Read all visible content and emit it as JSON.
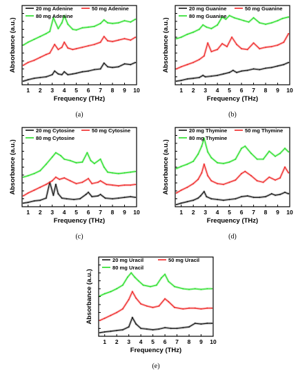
{
  "colors": {
    "low": "#111111",
    "mid": "#ee2222",
    "high": "#22dd22"
  },
  "chart_data": [
    {
      "type": "line",
      "panel_label": "(a)",
      "xlabel": "Frequency (THz)",
      "ylabel": "Absorbance (a.u.)",
      "xlim": [
        0.5,
        10
      ],
      "x_ticks": [
        "1",
        "2",
        "3",
        "4",
        "5",
        "6",
        "7",
        "8",
        "9",
        "10"
      ],
      "ylim": [
        0,
        11
      ],
      "series": [
        {
          "name": "20 mg Adenine",
          "color_key": "low",
          "x": [
            0.6,
            1.0,
            1.5,
            2.0,
            2.5,
            3.0,
            3.2,
            3.5,
            3.8,
            4.0,
            4.3,
            4.7,
            5.0,
            5.5,
            6.0,
            6.5,
            7.0,
            7.3,
            7.6,
            8.0,
            8.5,
            9.0,
            9.5,
            9.9
          ],
          "y": [
            0.5,
            0.7,
            0.9,
            1.0,
            1.1,
            1.4,
            1.9,
            1.5,
            1.4,
            1.8,
            1.4,
            1.5,
            1.6,
            1.8,
            1.9,
            2.1,
            2.2,
            3.0,
            2.5,
            2.4,
            2.5,
            2.9,
            2.8,
            3.1
          ]
        },
        {
          "name": "50 mg Adenine",
          "color_key": "mid",
          "x": [
            0.6,
            1.0,
            1.5,
            2.0,
            2.5,
            2.8,
            3.2,
            3.5,
            3.8,
            4.0,
            4.3,
            4.7,
            5.0,
            5.5,
            6.0,
            6.5,
            7.0,
            7.3,
            7.6,
            8.0,
            8.5,
            9.0,
            9.5,
            9.9
          ],
          "y": [
            2.7,
            3.1,
            3.4,
            3.8,
            4.2,
            4.4,
            5.6,
            4.9,
            5.2,
            5.9,
            5.1,
            4.9,
            5.0,
            5.2,
            5.4,
            5.6,
            5.9,
            6.7,
            6.1,
            6.0,
            6.2,
            6.4,
            6.2,
            6.6
          ]
        },
        {
          "name": "80 mg Adenine",
          "color_key": "high",
          "x": [
            0.6,
            1.0,
            1.5,
            2.0,
            2.5,
            2.8,
            3.1,
            3.5,
            3.8,
            4.0,
            4.3,
            4.7,
            5.0,
            5.5,
            6.0,
            6.5,
            7.0,
            7.3,
            7.6,
            8.0,
            8.5,
            9.0,
            9.5,
            9.9
          ],
          "y": [
            5.5,
            5.9,
            6.3,
            6.7,
            7.1,
            7.4,
            9.3,
            7.8,
            8.6,
            9.6,
            8.4,
            7.7,
            7.6,
            7.9,
            8.0,
            8.1,
            8.5,
            9.0,
            8.6,
            8.5,
            8.6,
            8.9,
            8.7,
            9.1
          ]
        }
      ]
    },
    {
      "type": "line",
      "panel_label": "(b)",
      "xlabel": "Frequency (THz)",
      "ylabel": "Absorbance (a.u.)",
      "xlim": [
        0.5,
        10
      ],
      "x_ticks": [
        "1",
        "2",
        "3",
        "4",
        "5",
        "6",
        "7",
        "8",
        "9",
        "10"
      ],
      "ylim": [
        0,
        11
      ],
      "series": [
        {
          "name": "20 mg Guanine",
          "color_key": "low",
          "x": [
            0.6,
            1.0,
            1.5,
            2.0,
            2.5,
            2.8,
            3.0,
            3.5,
            4.0,
            4.5,
            5.0,
            5.3,
            5.6,
            6.0,
            6.5,
            7.0,
            7.5,
            8.0,
            8.5,
            9.0,
            9.5,
            9.9
          ],
          "y": [
            0.5,
            0.6,
            0.8,
            0.9,
            1.0,
            1.3,
            1.1,
            1.2,
            1.3,
            1.5,
            1.7,
            2.0,
            1.7,
            1.9,
            2.0,
            2.2,
            2.1,
            2.3,
            2.4,
            2.6,
            2.8,
            3.1
          ]
        },
        {
          "name": "50 mg Guanine",
          "color_key": "mid",
          "x": [
            0.6,
            1.0,
            1.5,
            2.0,
            2.5,
            2.9,
            3.2,
            3.5,
            4.0,
            4.4,
            4.8,
            5.2,
            5.6,
            6.0,
            6.5,
            7.0,
            7.5,
            8.0,
            8.5,
            9.0,
            9.5,
            9.9
          ],
          "y": [
            2.2,
            2.5,
            2.8,
            3.1,
            3.5,
            4.0,
            5.8,
            4.6,
            4.9,
            5.7,
            5.3,
            6.6,
            5.6,
            5.0,
            4.9,
            5.8,
            5.0,
            5.2,
            5.3,
            5.5,
            5.9,
            7.1
          ]
        },
        {
          "name": "80 mg Guanine",
          "color_key": "high",
          "x": [
            0.6,
            1.0,
            1.5,
            2.0,
            2.5,
            2.8,
            3.1,
            3.5,
            4.0,
            4.4,
            4.7,
            5.0,
            5.4,
            5.8,
            6.2,
            6.6,
            7.0,
            7.5,
            8.0,
            8.5,
            9.0,
            9.4,
            9.9
          ],
          "y": [
            6.4,
            6.6,
            7.0,
            7.3,
            7.7,
            8.3,
            8.0,
            7.8,
            8.3,
            9.4,
            9.1,
            9.6,
            9.3,
            9.1,
            8.9,
            8.7,
            9.3,
            8.6,
            8.4,
            8.6,
            8.9,
            9.2,
            9.4
          ]
        }
      ]
    },
    {
      "type": "line",
      "panel_label": "(c)",
      "xlabel": "Frequency (THz)",
      "ylabel": "Absorbance (a.u.)",
      "xlim": [
        0.5,
        10
      ],
      "x_ticks": [
        "1",
        "2",
        "3",
        "4",
        "5",
        "6",
        "7",
        "8",
        "9",
        "10"
      ],
      "ylim": [
        0,
        11
      ],
      "series": [
        {
          "name": "20 mg Cytosine",
          "color_key": "low",
          "x": [
            0.6,
            1.0,
            1.5,
            2.0,
            2.5,
            2.8,
            3.1,
            3.3,
            3.5,
            3.8,
            4.2,
            4.8,
            5.3,
            5.8,
            6.0,
            6.3,
            6.8,
            7.0,
            7.4,
            8.0,
            8.5,
            9.0,
            9.5,
            9.9
          ],
          "y": [
            0.5,
            0.6,
            0.8,
            0.9,
            1.2,
            3.4,
            1.6,
            3.1,
            1.8,
            1.2,
            1.1,
            1.0,
            1.1,
            1.7,
            2.0,
            1.4,
            1.5,
            1.7,
            1.2,
            1.1,
            1.2,
            1.3,
            1.4,
            1.3
          ]
        },
        {
          "name": "50 mg Cytosine",
          "color_key": "mid",
          "x": [
            0.6,
            1.0,
            1.5,
            2.0,
            2.5,
            3.0,
            3.3,
            3.6,
            4.0,
            4.5,
            5.0,
            5.5,
            6.0,
            6.3,
            6.8,
            7.0,
            7.5,
            8.0,
            8.5,
            9.0,
            9.5,
            9.9
          ],
          "y": [
            1.5,
            1.9,
            2.3,
            2.7,
            3.1,
            3.6,
            4.1,
            3.8,
            4.0,
            3.6,
            3.2,
            3.4,
            3.9,
            3.2,
            3.4,
            3.6,
            3.1,
            3.0,
            2.9,
            3.0,
            3.0,
            3.1
          ]
        },
        {
          "name": "80 mg Cytosine",
          "color_key": "high",
          "x": [
            0.6,
            1.0,
            1.5,
            2.0,
            2.5,
            3.0,
            3.3,
            3.7,
            4.0,
            4.5,
            5.0,
            5.5,
            5.9,
            6.2,
            6.5,
            7.0,
            7.3,
            7.6,
            8.0,
            8.5,
            9.0,
            9.5,
            9.9
          ],
          "y": [
            4.1,
            4.3,
            4.6,
            5.0,
            5.9,
            6.9,
            7.5,
            7.1,
            6.6,
            6.4,
            6.1,
            6.2,
            7.5,
            6.4,
            6.0,
            6.6,
            5.5,
            4.8,
            4.7,
            4.6,
            4.7,
            4.8,
            4.9
          ]
        }
      ]
    },
    {
      "type": "line",
      "panel_label": "(d)",
      "xlabel": "Frequency (THz)",
      "ylabel": "Absorbance (a.u.)",
      "xlim": [
        0.5,
        10
      ],
      "x_ticks": [
        "1",
        "2",
        "3",
        "4",
        "5",
        "6",
        "7",
        "8",
        "9",
        "10"
      ],
      "ylim": [
        0,
        11
      ],
      "series": [
        {
          "name": "20 mg Thymine",
          "color_key": "low",
          "x": [
            0.6,
            1.0,
            1.5,
            2.0,
            2.4,
            2.6,
            2.9,
            3.1,
            3.5,
            4.0,
            4.5,
            5.0,
            5.5,
            6.0,
            6.5,
            7.0,
            7.5,
            8.0,
            8.5,
            8.8,
            9.2,
            9.6,
            9.9
          ],
          "y": [
            0.3,
            0.5,
            0.7,
            0.9,
            1.2,
            1.5,
            2.1,
            1.4,
            1.1,
            1.0,
            0.9,
            1.0,
            1.1,
            1.4,
            1.5,
            1.3,
            1.3,
            1.4,
            1.8,
            1.6,
            1.7,
            2.0,
            1.8
          ]
        },
        {
          "name": "50 mg Thymine",
          "color_key": "mid",
          "x": [
            0.6,
            1.0,
            1.5,
            2.0,
            2.4,
            2.7,
            2.9,
            3.2,
            3.5,
            4.0,
            4.5,
            5.0,
            5.5,
            6.0,
            6.3,
            6.8,
            7.3,
            7.8,
            8.3,
            8.8,
            9.2,
            9.6,
            9.9
          ],
          "y": [
            1.9,
            2.3,
            2.7,
            3.2,
            3.8,
            4.7,
            5.9,
            4.3,
            3.6,
            3.2,
            3.1,
            3.4,
            3.7,
            4.6,
            4.9,
            4.3,
            3.6,
            3.4,
            4.1,
            3.7,
            4.0,
            5.5,
            4.7
          ]
        },
        {
          "name": "80 mg Thymine",
          "color_key": "high",
          "x": [
            0.6,
            1.0,
            1.5,
            2.0,
            2.4,
            2.7,
            2.9,
            3.2,
            3.5,
            4.0,
            4.5,
            5.0,
            5.5,
            6.0,
            6.3,
            6.8,
            7.3,
            7.8,
            8.3,
            8.8,
            9.2,
            9.6,
            9.9
          ],
          "y": [
            5.3,
            5.6,
            5.9,
            6.3,
            7.3,
            8.4,
            9.5,
            7.6,
            6.8,
            6.1,
            6.0,
            6.2,
            6.6,
            8.1,
            8.4,
            7.4,
            6.6,
            6.6,
            7.7,
            7.0,
            7.4,
            8.1,
            7.6
          ]
        }
      ]
    },
    {
      "type": "line",
      "panel_label": "(e)",
      "xlabel": "Frequency (THz)",
      "ylabel": "Absorbance (a.u.)",
      "xlim": [
        0.5,
        10
      ],
      "x_ticks": [
        "1",
        "2",
        "3",
        "4",
        "5",
        "6",
        "7",
        "8",
        "9",
        "10"
      ],
      "ylim": [
        0,
        11
      ],
      "series": [
        {
          "name": "20 mg Uracil",
          "color_key": "low",
          "x": [
            0.6,
            1.0,
            1.5,
            2.0,
            2.5,
            3.0,
            3.3,
            3.6,
            4.0,
            4.5,
            5.0,
            5.5,
            6.0,
            6.5,
            7.0,
            7.5,
            8.0,
            8.5,
            9.0,
            9.5,
            9.9
          ],
          "y": [
            0.5,
            0.6,
            0.7,
            0.8,
            0.9,
            1.3,
            2.6,
            1.7,
            1.1,
            1.0,
            0.9,
            1.0,
            1.2,
            1.1,
            1.1,
            1.2,
            1.3,
            1.8,
            1.7,
            1.8,
            1.8
          ]
        },
        {
          "name": "50 mg Uracil",
          "color_key": "mid",
          "x": [
            0.6,
            1.0,
            1.5,
            2.0,
            2.5,
            3.0,
            3.3,
            3.6,
            4.0,
            4.5,
            5.0,
            5.5,
            6.0,
            6.3,
            6.8,
            7.5,
            8.0,
            8.5,
            9.0,
            9.5,
            9.9
          ],
          "y": [
            2.2,
            2.5,
            2.9,
            3.3,
            3.8,
            5.1,
            6.2,
            5.3,
            4.5,
            4.2,
            4.0,
            4.2,
            5.2,
            4.8,
            4.0,
            3.8,
            3.9,
            3.9,
            3.8,
            3.9,
            3.9
          ]
        },
        {
          "name": "80 mg Uracil",
          "color_key": "high",
          "x": [
            0.6,
            1.0,
            1.5,
            2.0,
            2.5,
            2.9,
            3.2,
            3.5,
            3.8,
            4.2,
            4.8,
            5.3,
            5.7,
            6.0,
            6.3,
            6.8,
            7.5,
            8.0,
            8.5,
            9.0,
            9.5,
            9.9
          ],
          "y": [
            5.6,
            5.9,
            6.2,
            6.6,
            7.1,
            8.2,
            8.8,
            8.2,
            7.7,
            7.1,
            6.9,
            7.1,
            8.1,
            8.6,
            7.6,
            6.9,
            6.6,
            6.5,
            6.6,
            6.5,
            6.6,
            6.6
          ]
        }
      ]
    }
  ]
}
